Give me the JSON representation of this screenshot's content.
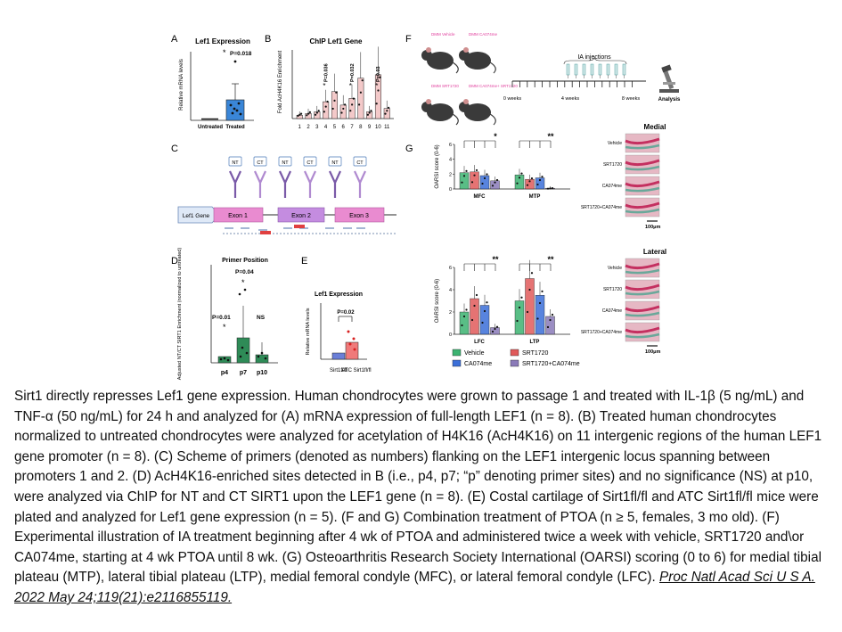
{
  "figure": {
    "panelA": {
      "letter": "A",
      "title": "Lef1 Expression",
      "ylabel": "Relative mRNA levels",
      "pvalue": "P=0.018",
      "star": "*",
      "categories": [
        "Untreated",
        "Treated"
      ],
      "values": [
        1,
        15
      ],
      "errors": [
        0.2,
        17
      ]
    },
    "panelB": {
      "letter": "B",
      "title": "ChIP Lef1 Gene",
      "ylabel": "Fold AcH4K16 Enrichment",
      "categories": [
        "1",
        "2",
        "3",
        "4",
        "5",
        "6",
        "7",
        "8",
        "9",
        "10",
        "11"
      ],
      "values": [
        1,
        1.5,
        2,
        5,
        8,
        4,
        6,
        12,
        2,
        13,
        3
      ],
      "pvalues": [
        {
          "pos": "4",
          "label": "P=0.036"
        },
        {
          "pos": "7",
          "label": "P=0.032"
        },
        {
          "pos": "10",
          "label": "P=0.03"
        }
      ],
      "star": "*"
    },
    "panelC": {
      "letter": "C",
      "gene_label": "Lef1 Gene",
      "exons": [
        "Exon 1",
        "Exon 2",
        "Exon 3"
      ],
      "antibody_labels": [
        "NT",
        "CT"
      ]
    },
    "panelD": {
      "letter": "D",
      "title": "Primer Position",
      "ylabel": "Adjusted NT/CT SIRT1 Enrichment (normalized to untreated)",
      "categories": [
        "p4",
        "p7",
        "p10"
      ],
      "values": [
        8,
        50,
        15
      ],
      "errors": [
        5,
        70,
        25
      ],
      "annotations": [
        "P=0.01",
        "P=0.04",
        "NS"
      ],
      "stars": [
        "*",
        "*"
      ]
    },
    "panelE": {
      "letter": "E",
      "title": "Lef1 Expression",
      "ylabel": "Relative mRNA levels",
      "categories": [
        "Sirt1fl/fl",
        "ATC Sirt1fl/fl"
      ],
      "values": [
        1,
        2.3
      ],
      "pvalue": "P=0.02"
    },
    "panelF": {
      "letter": "F",
      "mouse_labels": [
        "DMM Vehicle",
        "DMM CA074me",
        "DMM SRT1720",
        "DMM CA074me+ SRT1720"
      ],
      "timeline_title": "IA injections",
      "time_labels": [
        "0 weeks",
        "4 weeks",
        "8 weeks"
      ],
      "end_label": "Analysis"
    },
    "panelG": {
      "letter": "G",
      "medial": {
        "ylabel": "OARSI score (0-6)",
        "groups": [
          "MFC",
          "MTP"
        ],
        "values": [
          [
            2.2,
            2.3,
            1.8,
            1.1
          ],
          [
            1.9,
            1.3,
            1.5,
            0.1
          ]
        ],
        "stars": [
          "*",
          "**"
        ],
        "ytick": [
          "0",
          "2",
          "4",
          "6"
        ]
      },
      "lateral": {
        "ylabel": "OARSI score (0-6)",
        "groups": [
          "LFC",
          "LTP"
        ],
        "values": [
          [
            2.0,
            3.2,
            2.6,
            0.6
          ],
          [
            3.0,
            5.0,
            3.5,
            1.6
          ]
        ],
        "stars": [
          "**",
          "**"
        ],
        "ytick": [
          "0",
          "2",
          "4",
          "6"
        ]
      },
      "legend": [
        "Vehicle",
        "SRT1720",
        "CA074me",
        "SRT1720+CA074me"
      ],
      "colors": [
        "#3cb371",
        "#e05a5a",
        "#3b6fd8",
        "#8a7ab8"
      ],
      "histology": {
        "medial_title": "Medial",
        "lateral_title": "Lateral",
        "rows": [
          "Vehicle",
          "SRT1720",
          "CA074me",
          "SRT1720+CA074me"
        ],
        "scale": "100μm"
      }
    }
  },
  "caption": {
    "text": "Sirt1 directly represses Lef1 gene expression. Human chondrocytes were grown to passage 1 and treated with IL-1β (5 ng/mL) and TNF-α (50 ng/mL) for 24 h and analyzed for (A) mRNA expression of full-length LEF1 (n = 8). (B) Treated human chondrocytes normalized to untreated chondrocytes were analyzed for acetylation of H4K16 (AcH4K16) on 11 intergenic regions of the human LEF1 gene promoter (n = 8). (C) Scheme of primers (denoted as numbers) flanking on the LEF1 intergenic locus spanning between promoters 1 and 2. (D) AcH4K16-enriched sites detected in B (i.e., p4, p7; “p” denoting primer sites) and no significance (NS) at p10, were analyzed via ChIP for NT and CT SIRT1 upon the LEF1 gene (n = 8). (E) Costal cartilage of Sirt1fl/fl and ATC Sirt1fl/fl mice were plated and analyzed for Lef1 gene expression (n = 5). (F and G) Combination treatment of PTOA (n ≥ 5, females, 3 mo old). (F) Experimental illustration of IA treatment beginning after 4 wk of PTOA and administered twice a week with vehicle, SRT1720 and\\or CA074me, starting at 4 wk PTOA until 8 wk. (G) Osteoarthritis Research Society International (OARSI) scoring (0 to 6) for medial tibial plateau (MTP), lateral tibial plateau (LTP), medial femoral condyle (MFC), or lateral femoral condyle (LFC).",
    "citation": "Proc Natl Acad Sci U S A. 2022 May 24;119(21):e2116855119."
  }
}
